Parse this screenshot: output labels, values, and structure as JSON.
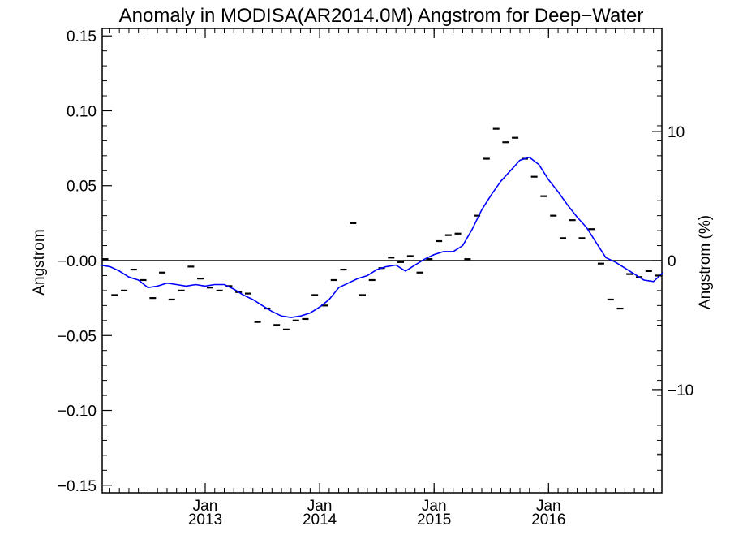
{
  "chart_data": {
    "type": "line",
    "title": "Anomaly in MODISA(AR2014.0M) Angstrom for Deep−Water",
    "ylabel": "Angstrom",
    "y2label": "Angstrom (%)",
    "ylim": [
      -0.155,
      0.155
    ],
    "y2lim": [
      -18.0,
      18.0
    ],
    "xlim": [
      2012.1,
      2016.99
    ],
    "grid": false,
    "zero_line": 0,
    "colors": {
      "series_line": "#0000ff",
      "monthly_marks": "#000000",
      "axes": "#000000"
    },
    "y_ticks": [
      {
        "value": 0.15,
        "label": "0.15"
      },
      {
        "value": 0.1,
        "label": "0.10"
      },
      {
        "value": 0.05,
        "label": "0.05"
      },
      {
        "value": 0.0,
        "label": "−0.00"
      },
      {
        "value": -0.05,
        "label": "−0.05"
      },
      {
        "value": -0.1,
        "label": "−0.10"
      },
      {
        "value": -0.15,
        "label": "−0.15"
      }
    ],
    "y2_ticks": [
      {
        "value": 10,
        "label": "10"
      },
      {
        "value": 0,
        "label": "0"
      },
      {
        "value": -10,
        "label": "−10"
      }
    ],
    "x_ticks": [
      {
        "value": 2013.0,
        "line1": "Jan",
        "line2": "2013"
      },
      {
        "value": 2014.0,
        "line1": "Jan",
        "line2": "2014"
      },
      {
        "value": 2015.0,
        "line1": "Jan",
        "line2": "2015"
      },
      {
        "value": 2016.0,
        "line1": "Jan",
        "line2": "2016"
      }
    ],
    "series": [
      {
        "style": "dash-markers",
        "x": [
          2012.125,
          2012.208,
          2012.292,
          2012.375,
          2012.458,
          2012.542,
          2012.625,
          2012.708,
          2012.792,
          2012.875,
          2012.958,
          2013.042,
          2013.125,
          2013.208,
          2013.292,
          2013.375,
          2013.458,
          2013.542,
          2013.625,
          2013.708,
          2013.792,
          2013.875,
          2013.958,
          2014.042,
          2014.125,
          2014.208,
          2014.292,
          2014.375,
          2014.458,
          2014.542,
          2014.625,
          2014.708,
          2014.792,
          2014.875,
          2014.958,
          2015.042,
          2015.125,
          2015.208,
          2015.292,
          2015.375,
          2015.458,
          2015.542,
          2015.625,
          2015.708,
          2015.792,
          2015.875,
          2015.958,
          2016.042,
          2016.125,
          2016.208,
          2016.292,
          2016.375,
          2016.458,
          2016.542,
          2016.625,
          2016.708,
          2016.792,
          2016.875,
          2016.958
        ],
        "values": [
          0.001,
          -0.023,
          -0.02,
          -0.006,
          -0.013,
          -0.025,
          -0.008,
          -0.026,
          -0.02,
          -0.004,
          -0.012,
          -0.018,
          -0.02,
          -0.017,
          -0.021,
          -0.022,
          -0.041,
          -0.032,
          -0.043,
          -0.046,
          -0.04,
          -0.039,
          -0.023,
          -0.03,
          -0.013,
          -0.006,
          0.025,
          -0.023,
          -0.013,
          -0.005,
          0.002,
          -0.001,
          0.003,
          -0.008,
          0.001,
          0.013,
          0.017,
          0.018,
          0.001,
          0.03,
          0.068,
          0.088,
          0.079,
          0.082,
          0.068,
          0.056,
          0.043,
          0.03,
          0.015,
          0.027,
          0.015,
          0.021,
          -0.002,
          -0.026,
          -0.032,
          -0.009,
          -0.011,
          -0.007,
          -0.01
        ]
      },
      {
        "style": "line",
        "x": [
          2012.083,
          2012.167,
          2012.25,
          2012.333,
          2012.417,
          2012.5,
          2012.583,
          2012.667,
          2012.75,
          2012.833,
          2012.917,
          2013.0,
          2013.083,
          2013.167,
          2013.25,
          2013.333,
          2013.417,
          2013.5,
          2013.583,
          2013.667,
          2013.75,
          2013.833,
          2013.917,
          2014.0,
          2014.083,
          2014.167,
          2014.25,
          2014.333,
          2014.417,
          2014.5,
          2014.583,
          2014.667,
          2014.75,
          2014.833,
          2014.917,
          2015.0,
          2015.083,
          2015.167,
          2015.25,
          2015.333,
          2015.417,
          2015.5,
          2015.583,
          2015.667,
          2015.75,
          2015.833,
          2015.917,
          2016.0,
          2016.083,
          2016.167,
          2016.25,
          2016.333,
          2016.417,
          2016.5,
          2016.583,
          2016.667,
          2016.75,
          2016.833,
          2016.917,
          2017.0
        ],
        "values": [
          -0.003,
          -0.004,
          -0.007,
          -0.011,
          -0.013,
          -0.018,
          -0.017,
          -0.015,
          -0.016,
          -0.017,
          -0.016,
          -0.017,
          -0.016,
          -0.016,
          -0.019,
          -0.023,
          -0.026,
          -0.03,
          -0.034,
          -0.037,
          -0.038,
          -0.037,
          -0.035,
          -0.031,
          -0.026,
          -0.018,
          -0.015,
          -0.012,
          -0.01,
          -0.006,
          -0.004,
          -0.003,
          -0.007,
          -0.003,
          0.001,
          0.004,
          0.006,
          0.006,
          0.01,
          0.021,
          0.034,
          0.044,
          0.053,
          0.06,
          0.067,
          0.069,
          0.064,
          0.054,
          0.046,
          0.037,
          0.029,
          0.022,
          0.012,
          0.002,
          -0.001,
          -0.005,
          -0.009,
          -0.013,
          -0.014,
          -0.008
        ]
      }
    ]
  }
}
